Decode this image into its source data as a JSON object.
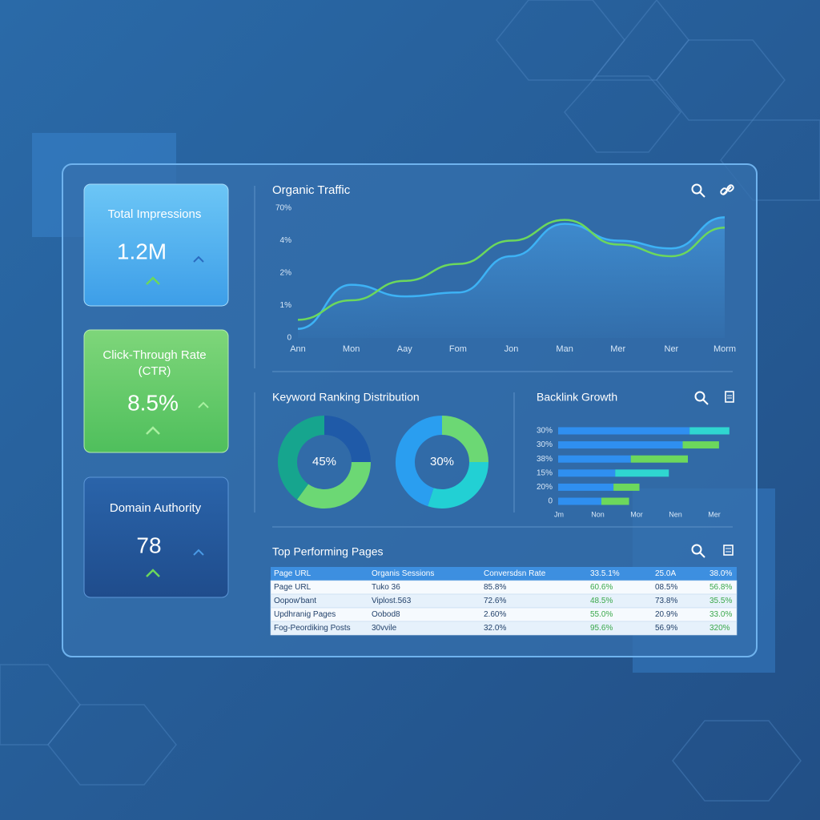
{
  "cards": [
    {
      "title": "Total Impressions",
      "value": "1.2M"
    },
    {
      "title": "Click-Through Rate",
      "subtitle": "(CTR)",
      "value": "8.5%"
    },
    {
      "title": "Domain Authority",
      "value": "78"
    }
  ],
  "traffic": {
    "title": "Organic Traffic",
    "y_labels": [
      "0",
      "1%",
      "2%",
      "4%",
      "70%"
    ],
    "ylim": [
      0,
      100
    ],
    "categories": [
      "Ann",
      "Mon",
      "Aay",
      "Fom",
      "Jon",
      "Man",
      "Mer",
      "Ner",
      "Morm"
    ],
    "series": [
      {
        "color": "#3db2f5",
        "values": [
          7,
          41,
          32,
          35,
          63,
          88,
          75,
          69,
          93
        ]
      },
      {
        "color": "#6cd85c",
        "values": [
          14,
          29,
          44,
          57,
          75,
          91,
          72,
          63,
          85
        ]
      }
    ]
  },
  "keywords": {
    "title": "Keyword Ranking Distribution",
    "donuts": [
      {
        "label": "45%",
        "values": [
          25,
          35,
          40
        ],
        "colors": [
          "#1f5aa8",
          "#6cd874",
          "#16a58e"
        ]
      },
      {
        "label": "30%",
        "values": [
          25,
          30,
          45
        ],
        "colors": [
          "#6cd874",
          "#22d0d4",
          "#2a9ef0"
        ]
      }
    ]
  },
  "backlinks": {
    "title": "Backlink Growth",
    "y_labels": [
      "30%",
      "30%",
      "38%",
      "15%",
      "20%",
      "0"
    ],
    "xlim": [
      0,
      100
    ],
    "x_labels": [
      "Jm",
      "Non",
      "Mor",
      "Nen",
      "Mer"
    ],
    "base": {
      "color": "#2f8ff0",
      "values": [
        76,
        72,
        42,
        33,
        32,
        25
      ]
    },
    "extra": {
      "colors": [
        "#2fd6d0",
        "#6cd85c",
        "#6cd85c",
        "#2fd6d0",
        "#6cd85c",
        "#6cd85c"
      ],
      "values": [
        23,
        21,
        33,
        31,
        15,
        16
      ]
    }
  },
  "table": {
    "title": "Top Performing Pages",
    "header": [
      "Page URL",
      "Organis Sessions",
      "Conversdsn Rate",
      "33.5.1%",
      "25.0A",
      "38.0%"
    ],
    "rows": [
      [
        "Page URL",
        "Tuko 36",
        "85.8%",
        "60.6%",
        "08.5%",
        "56.8%"
      ],
      [
        "Oopow'bant",
        "Viplost.563",
        "72.6%",
        "48.5%",
        "73.8%",
        "35.5%"
      ],
      [
        "Updhranig Pages",
        "Oobod8",
        "2.60%",
        "55.0%",
        "20.9%",
        "33.0%"
      ],
      [
        "Fog-Peordiking Posts",
        "30vvile",
        "32.0%",
        "95.6%",
        "56.9%",
        "320%"
      ]
    ]
  }
}
